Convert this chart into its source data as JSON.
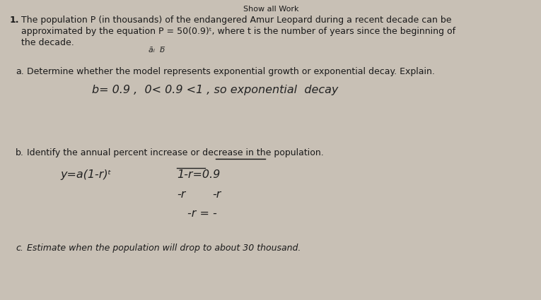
{
  "background_color": "#c8c0b5",
  "paper_color": "#e8e0d5",
  "header_text": "Show all Work",
  "problem_number": "1.",
  "problem_text_line1": "The population P (in thousands) of the endangered Amur Leopard during a recent decade can be",
  "problem_text_line2": "approximated by the equation P = 50(0.9)ᵗ, where t is the number of years since the beginning of",
  "problem_text_line3": "the decade.",
  "small_annotation": "āᵢ  b̅",
  "part_a_label": "a.",
  "part_a_text": "Determine whether the model represents exponential growth or exponential decay. Explain.",
  "part_a_handwriting": "b= 0.9 ,  0< 0.9 <1 , so exponential  decay",
  "part_b_label": "b.",
  "part_b_text": "Identify the annual percent increase or decrease in the population.",
  "part_b_hw1_left": "y=a(1-r)ᵗ",
  "part_b_hw1_right": "1-r=0.9",
  "part_b_hw2_left": "-r",
  "part_b_hw2_right": "-r",
  "part_b_hw3": "-r = -",
  "part_c_label": "c.",
  "part_c_text": "Estimate when the population will drop to about 30 thousand.",
  "printed_color": "#1a1a1a",
  "handwriting_color": "#222222",
  "underline_color": "#111111"
}
